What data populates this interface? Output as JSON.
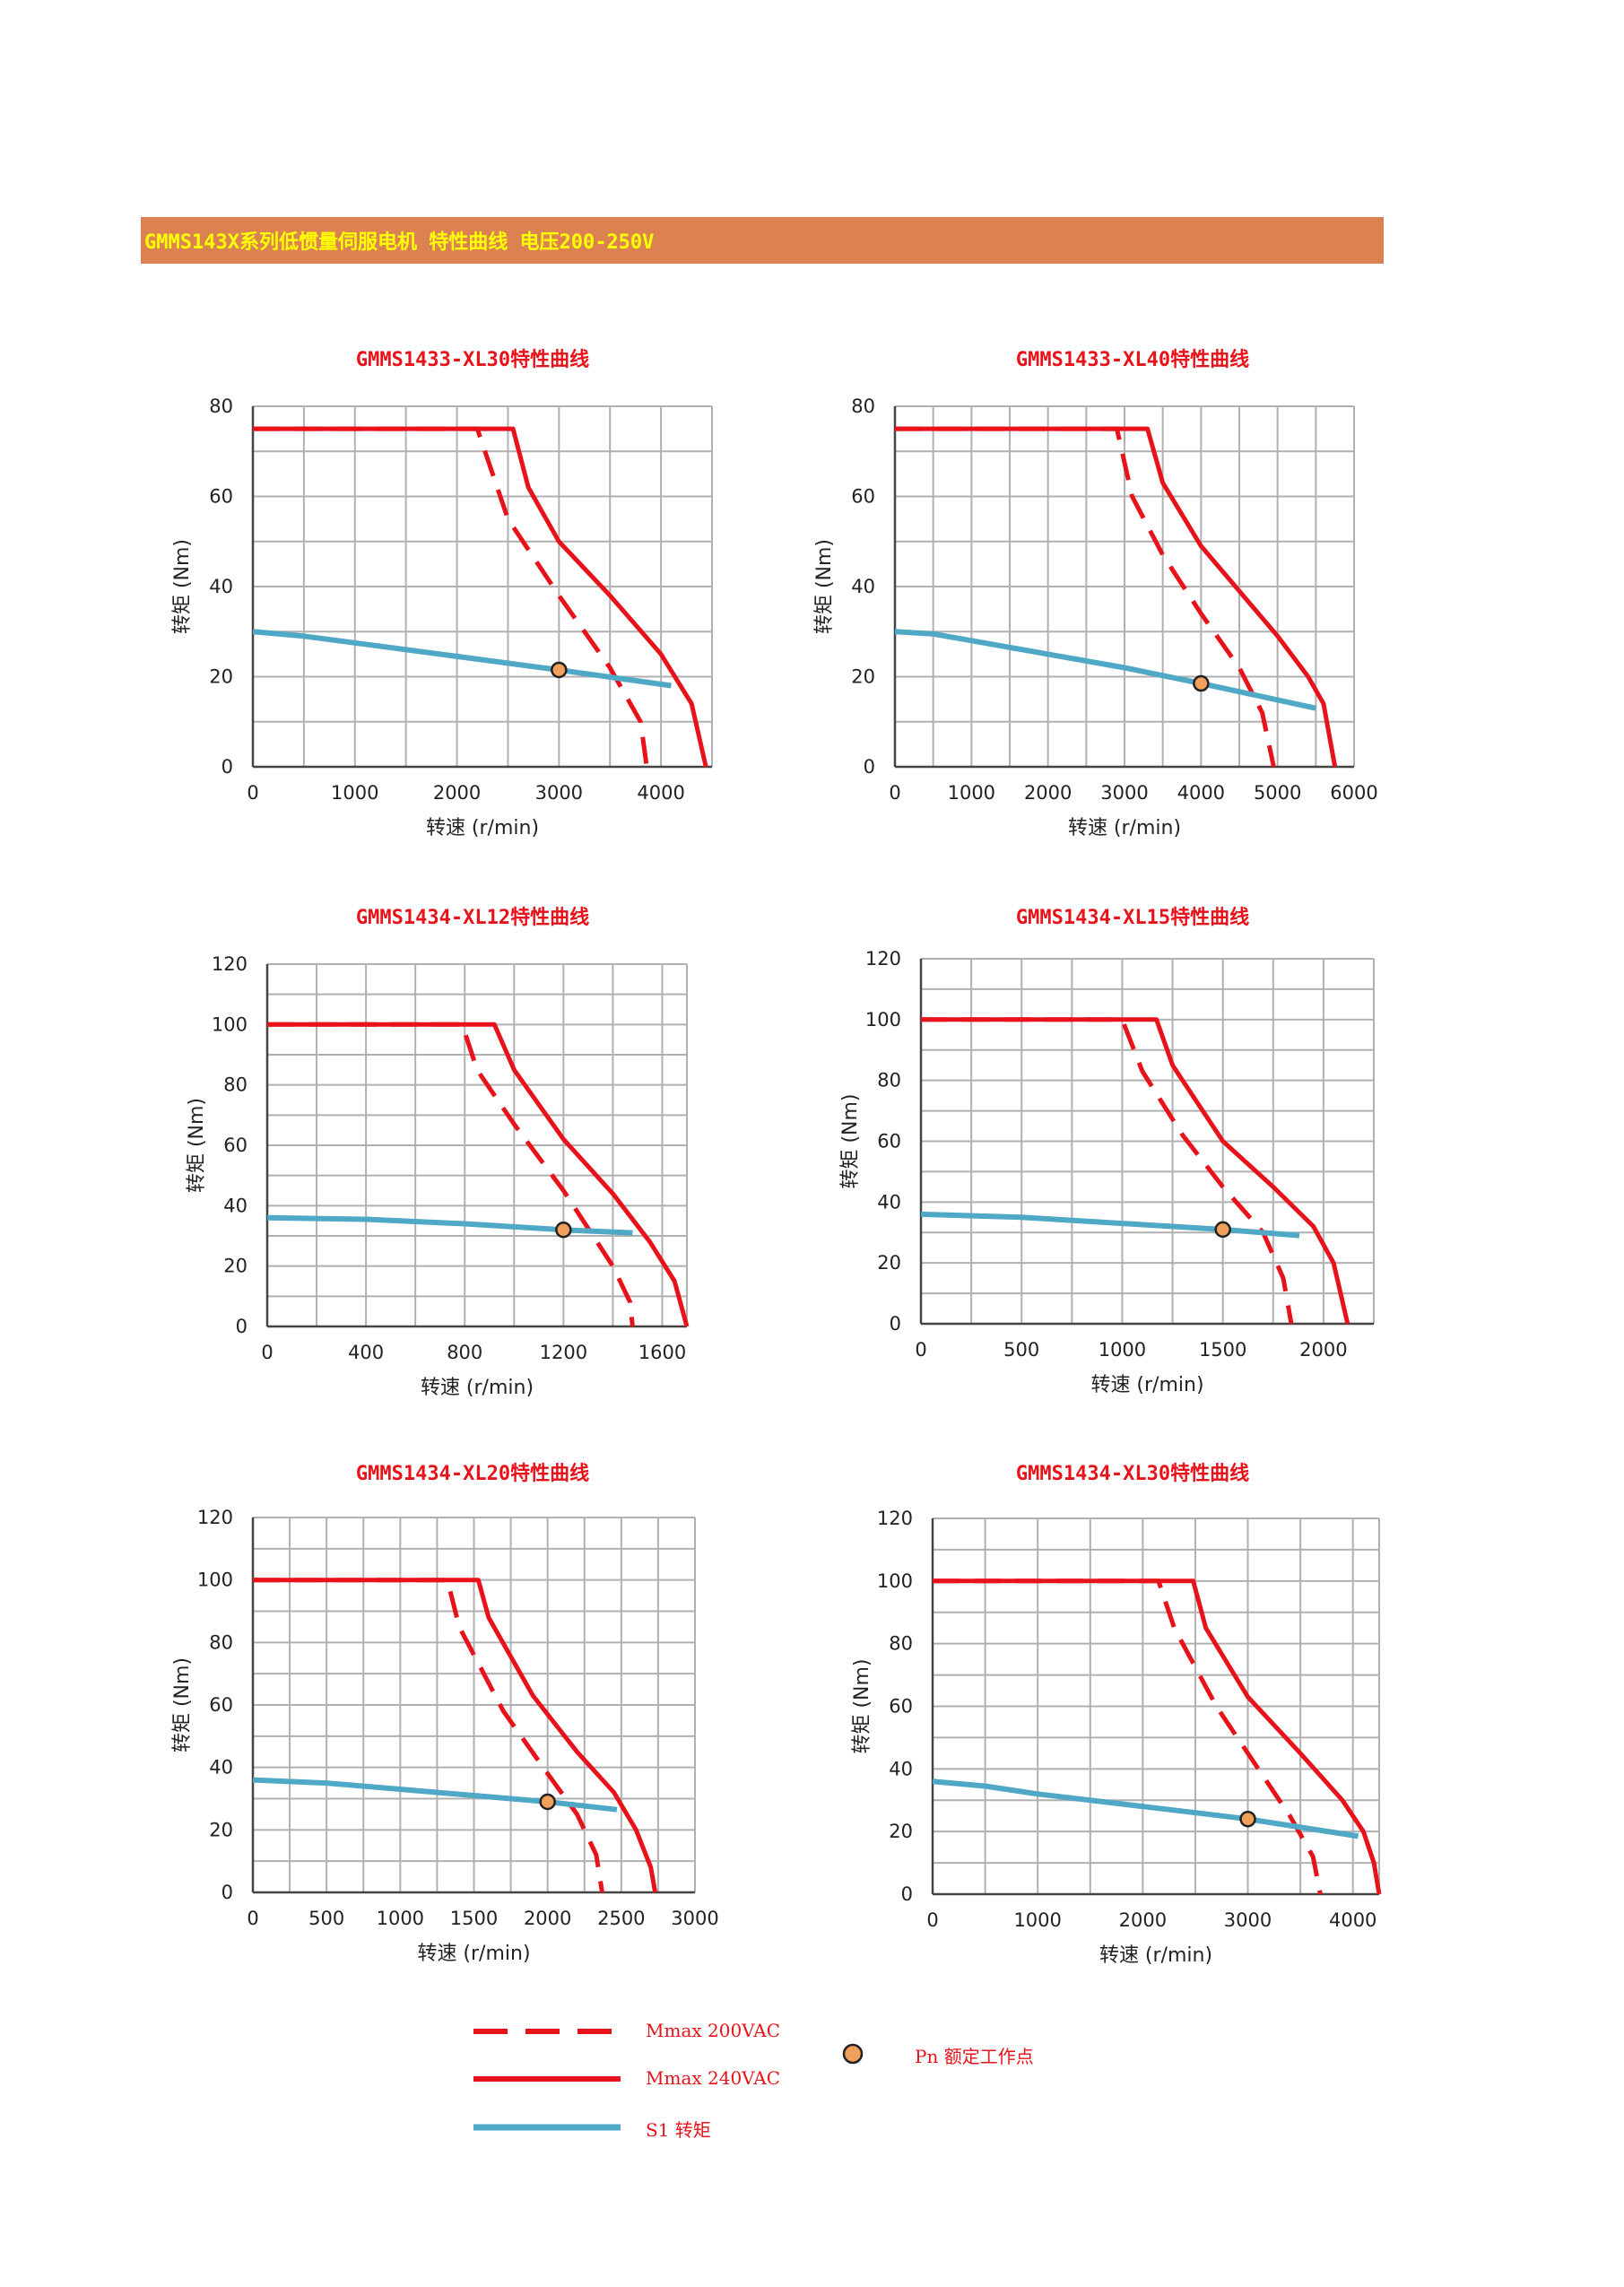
{
  "header": {
    "title": "GMMS143X系列低惯量伺服电机 特性曲线 电压200-250V",
    "bg_color": "#DC8252",
    "text_color": "#FFFF00"
  },
  "colors": {
    "title": "#E8131A",
    "mmax200": "#E8131A",
    "mmax240": "#E8131A",
    "s1": "#4FA8C6",
    "point_fill": "#F0A05A",
    "grid": "#B0B0B0"
  },
  "legend": {
    "mmax200": "Mmax 200VAC",
    "mmax240": "Mmax 240VAC",
    "s1": "S1 转矩",
    "pn": "Pn 额定工作点"
  },
  "chart_data": [
    {
      "type": "line",
      "title": "GMMS1433-XL30特性曲线",
      "xlabel": "转速 (r/min)",
      "ylabel": "转矩 (Nm)",
      "xlim": [
        0,
        4500
      ],
      "ylim": [
        0,
        80
      ],
      "xticks": [
        0,
        1000,
        2000,
        3000,
        4000
      ],
      "yticks": [
        0,
        20,
        40,
        60,
        80
      ],
      "grid": true,
      "series": [
        {
          "name": "Mmax 200VAC",
          "style": "dashed",
          "x": [
            0,
            2200,
            2500,
            3000,
            3500,
            3800,
            3860
          ],
          "y": [
            75,
            75,
            55,
            38,
            22,
            10,
            0
          ]
        },
        {
          "name": "Mmax 240VAC",
          "style": "solid",
          "x": [
            0,
            2550,
            2700,
            3000,
            3500,
            4000,
            4300,
            4440
          ],
          "y": [
            75,
            75,
            62,
            50,
            38,
            25,
            14,
            0
          ]
        },
        {
          "name": "S1 转矩",
          "style": "solid",
          "x": [
            0,
            500,
            1000,
            2000,
            3000,
            4100
          ],
          "y": [
            30,
            29,
            27.5,
            24.5,
            21.5,
            18
          ]
        }
      ],
      "points": [
        {
          "name": "Pn 额定工作点",
          "x": 3000,
          "y": 21.5
        }
      ]
    },
    {
      "type": "line",
      "title": "GMMS1433-XL40特性曲线",
      "xlabel": "转速 (r/min)",
      "ylabel": "转矩 (Nm)",
      "xlim": [
        0,
        6000
      ],
      "ylim": [
        0,
        80
      ],
      "xticks": [
        0,
        1000,
        2000,
        3000,
        4000,
        5000,
        6000
      ],
      "yticks": [
        0,
        20,
        40,
        60,
        80
      ],
      "grid": true,
      "series": [
        {
          "name": "Mmax 200VAC",
          "style": "dashed",
          "x": [
            0,
            2900,
            3100,
            3500,
            4000,
            4500,
            4800,
            4950
          ],
          "y": [
            75,
            75,
            60,
            47,
            34,
            22,
            12,
            0
          ]
        },
        {
          "name": "Mmax 240VAC",
          "style": "solid",
          "x": [
            0,
            3300,
            3500,
            4000,
            4500,
            5000,
            5400,
            5600,
            5750
          ],
          "y": [
            75,
            75,
            63,
            49,
            39,
            29,
            20,
            14,
            0
          ]
        },
        {
          "name": "S1 转矩",
          "style": "solid",
          "x": [
            0,
            500,
            1000,
            2000,
            3000,
            4000,
            5500
          ],
          "y": [
            30,
            29.5,
            28,
            25,
            22,
            18.5,
            13
          ]
        }
      ],
      "points": [
        {
          "name": "Pn 额定工作点",
          "x": 4000,
          "y": 18.5
        }
      ]
    },
    {
      "type": "line",
      "title": "GMMS1434-XL12特性曲线",
      "xlabel": "转速 (r/min)",
      "ylabel": "转矩 (Nm)",
      "xlim": [
        0,
        1700
      ],
      "ylim": [
        0,
        120
      ],
      "xticks": [
        0,
        400,
        800,
        1200,
        1600
      ],
      "yticks": [
        0,
        20,
        40,
        60,
        80,
        100,
        120
      ],
      "grid": true,
      "series": [
        {
          "name": "Mmax 200VAC",
          "style": "dashed",
          "x": [
            0,
            790,
            850,
            1000,
            1200,
            1400,
            1470,
            1480
          ],
          "y": [
            100,
            100,
            85,
            67,
            45,
            20,
            8,
            0
          ]
        },
        {
          "name": "Mmax 240VAC",
          "style": "solid",
          "x": [
            0,
            920,
            1000,
            1200,
            1400,
            1550,
            1650,
            1700
          ],
          "y": [
            100,
            100,
            85,
            62,
            44,
            28,
            15,
            0
          ]
        },
        {
          "name": "S1 转矩",
          "style": "solid",
          "x": [
            0,
            400,
            800,
            1200,
            1480
          ],
          "y": [
            36,
            35.5,
            34,
            32,
            31
          ]
        }
      ],
      "points": [
        {
          "name": "Pn 额定工作点",
          "x": 1200,
          "y": 32
        }
      ]
    },
    {
      "type": "line",
      "title": "GMMS1434-XL15特性曲线",
      "xlabel": "转速 (r/min)",
      "ylabel": "转矩 (Nm)",
      "xlim": [
        0,
        2250
      ],
      "ylim": [
        0,
        120
      ],
      "xticks": [
        0,
        500,
        1000,
        1500,
        2000
      ],
      "yticks": [
        0,
        20,
        40,
        60,
        80,
        100,
        120
      ],
      "grid": true,
      "series": [
        {
          "name": "Mmax 200VAC",
          "style": "dashed",
          "x": [
            0,
            1000,
            1100,
            1300,
            1500,
            1700,
            1800,
            1840
          ],
          "y": [
            100,
            100,
            83,
            62,
            45,
            30,
            15,
            0
          ]
        },
        {
          "name": "Mmax 240VAC",
          "style": "solid",
          "x": [
            0,
            1170,
            1250,
            1500,
            1750,
            1950,
            2050,
            2120
          ],
          "y": [
            100,
            100,
            85,
            60,
            45,
            32,
            20,
            0
          ]
        },
        {
          "name": "S1 转矩",
          "style": "solid",
          "x": [
            0,
            500,
            1000,
            1500,
            1880
          ],
          "y": [
            36,
            35,
            33,
            31,
            29
          ]
        }
      ],
      "points": [
        {
          "name": "Pn 额定工作点",
          "x": 1500,
          "y": 31
        }
      ]
    },
    {
      "type": "line",
      "title": "GMMS1434-XL20特性曲线",
      "xlabel": "转速 (r/min)",
      "ylabel": "转矩 (Nm)",
      "xlim": [
        0,
        3000
      ],
      "ylim": [
        0,
        120
      ],
      "xticks": [
        0,
        500,
        1000,
        1500,
        2000,
        2500,
        3000
      ],
      "yticks": [
        0,
        20,
        40,
        60,
        80,
        100,
        120
      ],
      "grid": true,
      "series": [
        {
          "name": "Mmax 200VAC",
          "style": "dashed",
          "x": [
            0,
            1320,
            1400,
            1700,
            2000,
            2200,
            2330,
            2370
          ],
          "y": [
            100,
            100,
            85,
            58,
            38,
            25,
            12,
            0
          ]
        },
        {
          "name": "Mmax 240VAC",
          "style": "solid",
          "x": [
            0,
            1530,
            1600,
            1900,
            2200,
            2450,
            2600,
            2700,
            2730
          ],
          "y": [
            100,
            100,
            88,
            63,
            45,
            32,
            20,
            8,
            0
          ]
        },
        {
          "name": "S1 转矩",
          "style": "solid",
          "x": [
            0,
            500,
            1000,
            1500,
            2000,
            2470
          ],
          "y": [
            36,
            35,
            33,
            31,
            29,
            26.5
          ]
        }
      ],
      "points": [
        {
          "name": "Pn 额定工作点",
          "x": 2000,
          "y": 29
        }
      ]
    },
    {
      "type": "line",
      "title": "GMMS1434-XL30特性曲线",
      "xlabel": "转速 (r/min)",
      "ylabel": "转矩 (Nm)",
      "xlim": [
        0,
        4250
      ],
      "ylim": [
        0,
        120
      ],
      "xticks": [
        0,
        1000,
        2000,
        3000,
        4000
      ],
      "yticks": [
        0,
        20,
        40,
        60,
        80,
        100,
        120
      ],
      "grid": true,
      "series": [
        {
          "name": "Mmax 200VAC",
          "style": "dashed",
          "x": [
            0,
            2150,
            2300,
            2700,
            3100,
            3400,
            3620,
            3690
          ],
          "y": [
            100,
            100,
            85,
            60,
            40,
            25,
            12,
            0
          ]
        },
        {
          "name": "Mmax 240VAC",
          "style": "solid",
          "x": [
            0,
            2480,
            2600,
            3000,
            3500,
            3900,
            4100,
            4200,
            4250
          ],
          "y": [
            100,
            100,
            85,
            63,
            45,
            30,
            20,
            10,
            0
          ]
        },
        {
          "name": "S1 转矩",
          "style": "solid",
          "x": [
            0,
            500,
            1000,
            2000,
            3000,
            4050
          ],
          "y": [
            36,
            34.5,
            32,
            28,
            24,
            18.5
          ]
        }
      ],
      "points": [
        {
          "name": "Pn 额定工作点",
          "x": 3000,
          "y": 24
        }
      ]
    }
  ]
}
